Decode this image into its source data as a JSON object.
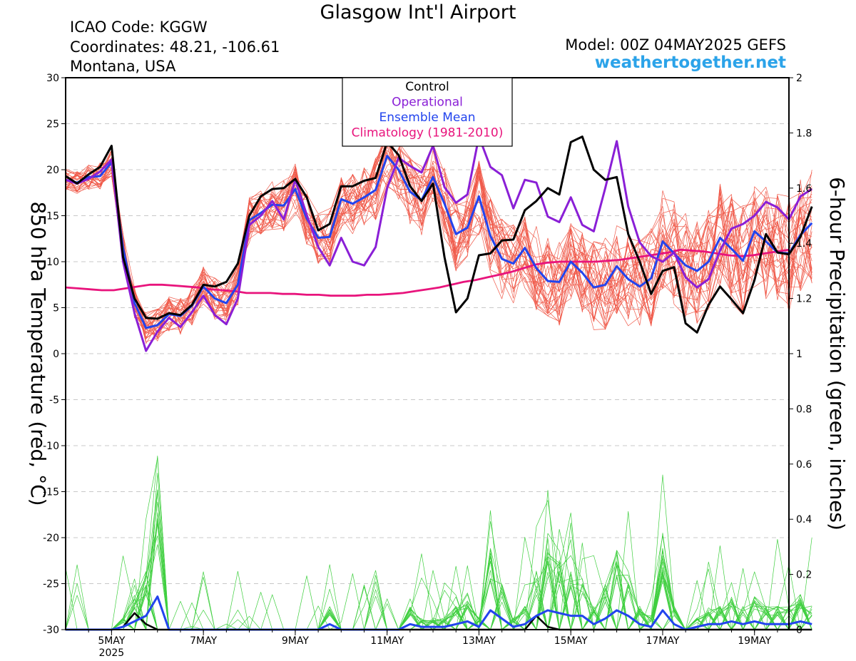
{
  "header": {
    "title": "Glasgow Int'l Airport",
    "icao": "ICAO Code: KGGW",
    "coordinates": "Coordinates: 48.21, -106.61",
    "region": "Montana, USA",
    "model": "Model: 00Z 04MAY2025 GEFS",
    "site": "weathertogether.net"
  },
  "chart_data": {
    "type": "line",
    "x_unit": "hours after 00Z 04 May 2025, 6-hourly",
    "xlim": [
      0,
      378
    ],
    "x_ticks": [
      {
        "x": 24,
        "label": "5MAY",
        "sublabel": "2025"
      },
      {
        "x": 72,
        "label": "7MAY"
      },
      {
        "x": 120,
        "label": "9MAY"
      },
      {
        "x": 168,
        "label": "11MAY"
      },
      {
        "x": 216,
        "label": "13MAY"
      },
      {
        "x": 264,
        "label": "15MAY"
      },
      {
        "x": 312,
        "label": "17MAY"
      },
      {
        "x": 360,
        "label": "19MAY"
      }
    ],
    "y_left": {
      "label": "850 hPa Temperature (red, °C)",
      "lim": [
        -30,
        30
      ],
      "ticks": [
        -30,
        -25,
        -20,
        -15,
        -10,
        -5,
        0,
        5,
        10,
        15,
        20,
        25,
        30
      ]
    },
    "y_right": {
      "label": "6-hour Precipitation (green, inches)",
      "lim": [
        0,
        2
      ],
      "ticks": [
        0,
        0.2,
        0.4,
        0.6,
        0.8,
        1,
        1.2,
        1.4,
        1.6,
        1.8,
        2
      ]
    },
    "legend": {
      "placement": "top-center",
      "entries": [
        {
          "label": "Control",
          "color": "#000000"
        },
        {
          "label": "Operational",
          "color": "#8a1fd6"
        },
        {
          "label": "Ensemble Mean",
          "color": "#2244ee"
        },
        {
          "label": "Climatology (1981-2010)",
          "color": "#e8147c"
        }
      ]
    },
    "colors": {
      "members_temp": "#f05a4a",
      "members_precip": "#3fcf3f",
      "control": "#000000",
      "operational": "#8a1fd6",
      "mean": "#2244ee",
      "climatology": "#e8147c"
    },
    "series": {
      "temperature_control": [
        19.3,
        18.5,
        19.5,
        20.3,
        22.6,
        10.5,
        6.0,
        3.9,
        3.8,
        4.4,
        4.2,
        5.3,
        7.5,
        7.3,
        7.8,
        9.8,
        15.0,
        17.1,
        17.9,
        18.0,
        19.0,
        17.0,
        13.4,
        14.1,
        18.2,
        18.2,
        18.8,
        19.1,
        23.0,
        21.6,
        18.2,
        16.6,
        18.5,
        10.5,
        4.5,
        6.0,
        10.7,
        10.9,
        12.3,
        12.4,
        15.6,
        16.6,
        18.0,
        17.3,
        23.0,
        23.6,
        20.0,
        18.9,
        19.2,
        13.0,
        10.0,
        6.5,
        9.0,
        9.4,
        3.3,
        2.3,
        5.3,
        7.3,
        5.9,
        4.4,
        8.0,
        13.0,
        11.0,
        10.8,
        12.7,
        16.0
      ],
      "temperature_operational": [
        18.9,
        18.5,
        19.0,
        19.8,
        21.1,
        10.0,
        4.4,
        0.3,
        2.4,
        3.9,
        2.9,
        4.5,
        6.3,
        4.2,
        3.2,
        6.0,
        14.0,
        15.0,
        16.6,
        14.6,
        18.9,
        15.1,
        11.6,
        9.6,
        12.6,
        10.0,
        9.6,
        11.6,
        18.0,
        21.3,
        20.4,
        19.7,
        22.6,
        18.1,
        16.4,
        17.3,
        23.6,
        20.3,
        19.4,
        15.8,
        18.9,
        18.6,
        14.9,
        14.3,
        17.0,
        14.0,
        13.3,
        18.0,
        23.1,
        16.0,
        12.1,
        10.6,
        10.0,
        11.0,
        8.3,
        7.2,
        8.1,
        11.2,
        13.6,
        14.1,
        15.0,
        16.5,
        15.9,
        14.6,
        17.1,
        17.9
      ],
      "temperature_mean": [
        18.9,
        18.6,
        19.2,
        19.3,
        20.8,
        11.5,
        5.5,
        2.8,
        3.1,
        4.3,
        4.1,
        5.2,
        7.3,
        6.0,
        5.5,
        7.5,
        14.5,
        15.3,
        16.2,
        16.1,
        17.9,
        14.7,
        12.6,
        12.7,
        16.8,
        16.3,
        17.0,
        17.8,
        21.5,
        20.0,
        17.6,
        16.7,
        19.2,
        16.3,
        13.0,
        13.7,
        17.1,
        12.8,
        10.3,
        9.8,
        11.5,
        9.3,
        7.9,
        7.8,
        10.0,
        8.8,
        7.2,
        7.5,
        9.5,
        8.1,
        7.3,
        8.2,
        12.2,
        10.9,
        9.6,
        9.0,
        10.0,
        12.6,
        11.4,
        10.1,
        13.3,
        12.2,
        11.0,
        10.9,
        12.9,
        14.2
      ],
      "temperature_climatology": [
        7.2,
        7.1,
        7.0,
        6.9,
        6.9,
        7.1,
        7.3,
        7.5,
        7.5,
        7.4,
        7.3,
        7.2,
        7.0,
        6.9,
        6.8,
        6.6,
        6.6,
        6.6,
        6.5,
        6.5,
        6.4,
        6.4,
        6.3,
        6.3,
        6.3,
        6.4,
        6.4,
        6.5,
        6.6,
        6.8,
        7.0,
        7.2,
        7.5,
        7.8,
        8.0,
        8.3,
        8.6,
        8.9,
        9.3,
        9.7,
        9.9,
        10.0,
        10.0,
        10.0,
        10.0,
        10.1,
        10.2,
        10.4,
        10.6,
        10.8,
        11.0,
        11.3,
        11.2,
        11.1,
        10.9,
        10.7,
        10.6,
        10.7,
        10.9,
        11.1,
        11.3
      ],
      "precip_control": [
        0,
        0,
        0,
        0,
        0,
        0.01,
        0.06,
        0.02,
        0,
        0,
        0,
        0,
        0,
        0,
        0,
        0,
        0,
        0,
        0,
        0,
        0,
        0,
        0,
        0,
        0,
        0,
        0,
        0,
        0,
        0,
        0,
        0,
        0,
        0,
        0,
        0,
        0,
        0,
        0,
        0,
        0,
        0.05,
        0.01,
        0,
        0,
        0,
        0,
        0,
        0,
        0,
        0,
        0,
        0,
        0,
        0,
        0,
        0,
        0,
        0,
        0,
        0,
        0,
        0,
        0,
        0,
        0
      ],
      "precip_mean": [
        0,
        0,
        0,
        0,
        0,
        0.01,
        0.03,
        0.05,
        0.12,
        0,
        0,
        0,
        0,
        0,
        0,
        0,
        0,
        0,
        0,
        0,
        0,
        0,
        0,
        0.02,
        0,
        0,
        0,
        0,
        0,
        0,
        0.02,
        0.01,
        0.01,
        0.01,
        0.02,
        0.03,
        0.01,
        0.07,
        0.04,
        0.01,
        0.02,
        0.05,
        0.07,
        0.06,
        0.05,
        0.05,
        0.02,
        0.04,
        0.07,
        0.05,
        0.02,
        0.01,
        0.07,
        0.02,
        0,
        0.01,
        0.02,
        0.02,
        0.03,
        0.02,
        0.03,
        0.02,
        0.02,
        0.02,
        0.03,
        0.02
      ]
    }
  }
}
